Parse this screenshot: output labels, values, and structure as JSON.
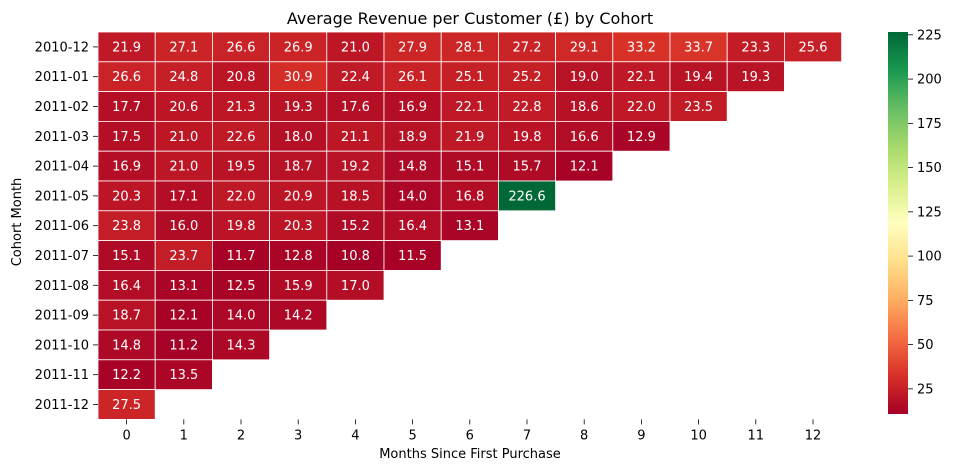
{
  "chart_data": {
    "type": "heatmap",
    "title": "Average Revenue per Customer (£) by Cohort",
    "xlabel": "Months Since First Purchase",
    "ylabel": "Cohort Month",
    "x": [
      "0",
      "1",
      "2",
      "3",
      "4",
      "5",
      "6",
      "7",
      "8",
      "9",
      "10",
      "11",
      "12"
    ],
    "y": [
      "2010-12",
      "2011-01",
      "2011-02",
      "2011-03",
      "2011-04",
      "2011-05",
      "2011-06",
      "2011-07",
      "2011-08",
      "2011-09",
      "2011-10",
      "2011-11",
      "2011-12"
    ],
    "values": [
      [
        21.9,
        27.1,
        26.6,
        26.9,
        21.0,
        27.9,
        28.1,
        27.2,
        29.1,
        33.2,
        33.7,
        23.3,
        25.6
      ],
      [
        26.6,
        24.8,
        20.8,
        30.9,
        22.4,
        26.1,
        25.1,
        25.2,
        19.0,
        22.1,
        19.4,
        19.3
      ],
      [
        17.7,
        20.6,
        21.3,
        19.3,
        17.6,
        16.9,
        22.1,
        22.8,
        18.6,
        22.0,
        23.5
      ],
      [
        17.5,
        21.0,
        22.6,
        18.0,
        21.1,
        18.9,
        21.9,
        19.8,
        16.6,
        12.9
      ],
      [
        16.9,
        21.0,
        19.5,
        18.7,
        19.2,
        14.8,
        15.1,
        15.7,
        12.1
      ],
      [
        20.3,
        17.1,
        22.0,
        20.9,
        18.5,
        14.0,
        16.8,
        226.6
      ],
      [
        23.8,
        16.0,
        19.8,
        20.3,
        15.2,
        16.4,
        13.1
      ],
      [
        15.1,
        23.7,
        11.7,
        12.8,
        10.8,
        11.5
      ],
      [
        16.4,
        13.1,
        12.5,
        15.9,
        17.0
      ],
      [
        18.7,
        12.1,
        14.0,
        14.2
      ],
      [
        14.8,
        11.2,
        14.3
      ],
      [
        12.2,
        13.5
      ],
      [
        27.5
      ]
    ],
    "colormap": "RdYlGn",
    "vmin": 10.8,
    "vmax": 226.6,
    "colorbar_ticks": [
      25,
      50,
      75,
      100,
      125,
      150,
      175,
      200,
      225
    ],
    "grid": false,
    "legend": "colorbar-right"
  }
}
